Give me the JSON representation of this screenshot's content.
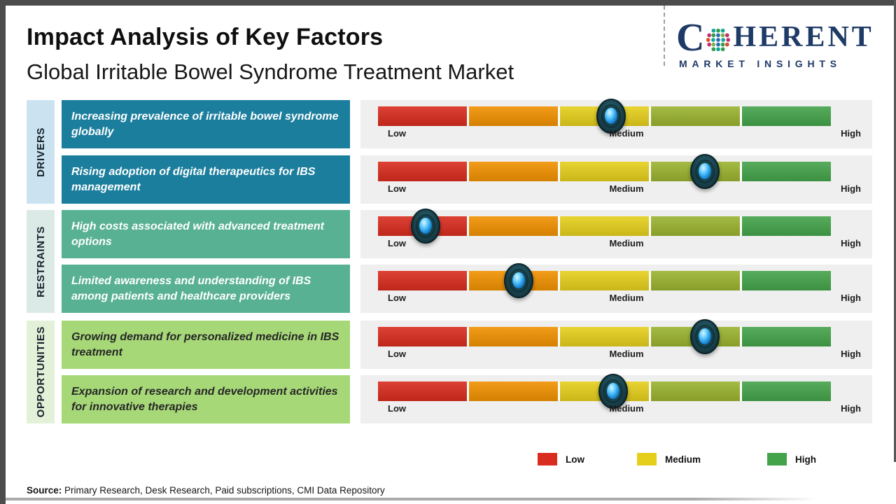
{
  "header": {
    "title": "Impact Analysis of Key Factors",
    "subtitle": "Global Irritable Bowel Syndrome Treatment Market",
    "logo": {
      "brand_prefix": "C",
      "brand_suffix": "HERENT",
      "tagline": "MARKET INSIGHTS",
      "brand_color": "#1e3a66"
    }
  },
  "chart_data": {
    "type": "impact-slider-bars",
    "scale_labels": [
      "Low",
      "Medium",
      "High"
    ],
    "scale_segment_colors": [
      "#d92c1e",
      "#f19100",
      "#e5cf1b",
      "#9ab32f",
      "#43a34a"
    ],
    "groups": [
      {
        "label": "DRIVERS",
        "strip_color": "#cbe3f1",
        "box_color": "#1c7e9d",
        "box_text_color": "#ffffff",
        "factors": [
          {
            "text": "Increasing prevalence of irritable bowel syndrome globally",
            "impact_level": "Medium",
            "impact_percent": 51.5
          },
          {
            "text": "Rising adoption of digital therapeutics for IBS management",
            "impact_level": "Medium-High",
            "impact_percent": 72.2
          }
        ]
      },
      {
        "label": "RESTRAINTS",
        "strip_color": "#dbeae6",
        "box_color": "#58b192",
        "box_text_color": "#ffffff",
        "factors": [
          {
            "text": "High costs associated with advanced treatment options",
            "impact_level": "Low",
            "impact_percent": 10.5
          },
          {
            "text": "Limited awareness and understanding of IBS among patients and healthcare providers",
            "impact_level": "Low-Medium",
            "impact_percent": 31.0
          }
        ]
      },
      {
        "label": "OPPORTUNITIES",
        "strip_color": "#e3f1d8",
        "box_color": "#a6d878",
        "box_text_color": "#262626",
        "factors": [
          {
            "text": "Growing demand for personalized medicine in IBS treatment",
            "impact_level": "Medium-High",
            "impact_percent": 72.2
          },
          {
            "text": "Expansion of research and development activities for innovative therapies",
            "impact_level": "Medium",
            "impact_percent": 52.0
          }
        ]
      }
    ]
  },
  "legend": {
    "items": [
      {
        "label": "Low",
        "color": "#d92c1e"
      },
      {
        "label": "Medium",
        "color": "#e5cf1b"
      },
      {
        "label": "High",
        "color": "#43a34a"
      }
    ]
  },
  "source": {
    "prefix": "Source:",
    "text": "Primary Research, Desk Research, Paid subscriptions, CMI Data Repository"
  }
}
